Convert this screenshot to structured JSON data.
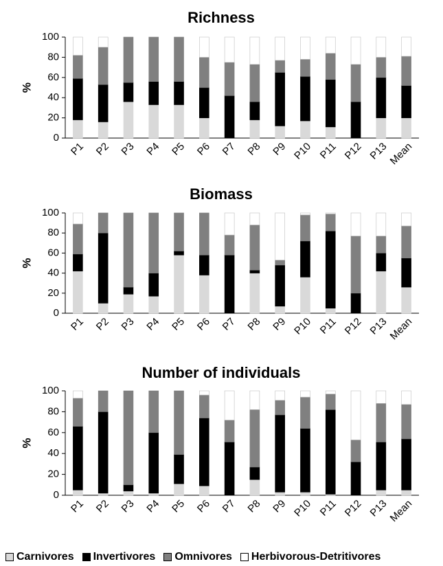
{
  "chart_data": [
    {
      "type": "bar",
      "stacked": true,
      "title": "Richness",
      "ylabel": "%",
      "xlabel": "",
      "ylim": [
        0,
        100
      ],
      "yticks": [
        0,
        20,
        40,
        60,
        80,
        100
      ],
      "grid": false,
      "categories": [
        "P1",
        "P2",
        "P3",
        "P4",
        "P5",
        "P6",
        "P7",
        "P8",
        "P9",
        "P10",
        "P11",
        "P12",
        "P13",
        "Mean"
      ],
      "series": [
        {
          "name": "Carnivores",
          "color": "#d9d9d9",
          "values": [
            18,
            16,
            36,
            33,
            33,
            20,
            0,
            18,
            12,
            17,
            11,
            0,
            20,
            20
          ]
        },
        {
          "name": "Invertivores",
          "color": "#000000",
          "values": [
            41,
            37,
            19,
            23,
            23,
            30,
            42,
            18,
            53,
            44,
            47,
            36,
            40,
            32
          ]
        },
        {
          "name": "Omnivores",
          "color": "#808080",
          "values": [
            23,
            37,
            45,
            44,
            44,
            30,
            33,
            37,
            12,
            17,
            26,
            37,
            20,
            29
          ]
        },
        {
          "name": "Herbivorous-Detritivores",
          "color": "#ffffff",
          "values": [
            18,
            10,
            0,
            0,
            0,
            20,
            25,
            27,
            23,
            22,
            16,
            27,
            20,
            19
          ]
        }
      ]
    },
    {
      "type": "bar",
      "stacked": true,
      "title": "Biomass",
      "ylabel": "%",
      "xlabel": "",
      "ylim": [
        0,
        100
      ],
      "yticks": [
        0,
        20,
        40,
        60,
        80,
        100
      ],
      "grid": false,
      "categories": [
        "P1",
        "P2",
        "P3",
        "P4",
        "P5",
        "P6",
        "P7",
        "P8",
        "P9",
        "P10",
        "P11",
        "P12",
        "P13",
        "Mean"
      ],
      "series": [
        {
          "name": "Carnivores",
          "color": "#d9d9d9",
          "values": [
            42,
            10,
            19,
            17,
            58,
            38,
            0,
            40,
            7,
            36,
            5,
            0,
            42,
            26
          ]
        },
        {
          "name": "Invertivores",
          "color": "#000000",
          "values": [
            17,
            70,
            7,
            23,
            4,
            20,
            58,
            3,
            41,
            36,
            77,
            20,
            18,
            29
          ]
        },
        {
          "name": "Omnivores",
          "color": "#808080",
          "values": [
            30,
            20,
            74,
            60,
            38,
            42,
            20,
            45,
            5,
            26,
            17,
            57,
            17,
            32
          ]
        },
        {
          "name": "Herbivorous-Detritivores",
          "color": "#ffffff",
          "values": [
            11,
            0,
            0,
            0,
            0,
            0,
            22,
            12,
            47,
            2,
            1,
            23,
            23,
            13
          ]
        }
      ]
    },
    {
      "type": "bar",
      "stacked": true,
      "title": "Number of individuals",
      "ylabel": "%",
      "xlabel": "",
      "ylim": [
        0,
        100
      ],
      "yticks": [
        0,
        20,
        40,
        60,
        80,
        100
      ],
      "grid": false,
      "categories": [
        "P1",
        "P2",
        "P3",
        "P4",
        "P5",
        "P6",
        "P7",
        "P8",
        "P9",
        "P10",
        "P11",
        "P12",
        "P13",
        "Mean"
      ],
      "series": [
        {
          "name": "Carnivores",
          "color": "#d9d9d9",
          "values": [
            5,
            2,
            4,
            2,
            11,
            9,
            0,
            15,
            3,
            3,
            1,
            0,
            5,
            5
          ]
        },
        {
          "name": "Invertivores",
          "color": "#000000",
          "values": [
            61,
            78,
            6,
            58,
            28,
            65,
            51,
            12,
            74,
            61,
            81,
            32,
            46,
            49
          ]
        },
        {
          "name": "Omnivores",
          "color": "#808080",
          "values": [
            27,
            20,
            90,
            40,
            61,
            22,
            21,
            55,
            14,
            30,
            15,
            21,
            37,
            33
          ]
        },
        {
          "name": "Herbivorous-Detritivores",
          "color": "#ffffff",
          "values": [
            7,
            0,
            0,
            0,
            0,
            4,
            28,
            18,
            9,
            6,
            3,
            47,
            12,
            13
          ]
        }
      ]
    }
  ],
  "legend": {
    "items": [
      {
        "label": "Carnivores",
        "color": "#d9d9d9"
      },
      {
        "label": "Invertivores",
        "color": "#000000"
      },
      {
        "label": "Omnivores",
        "color": "#808080"
      },
      {
        "label": "Herbivorous-Detritivores",
        "color": "#ffffff"
      }
    ]
  }
}
